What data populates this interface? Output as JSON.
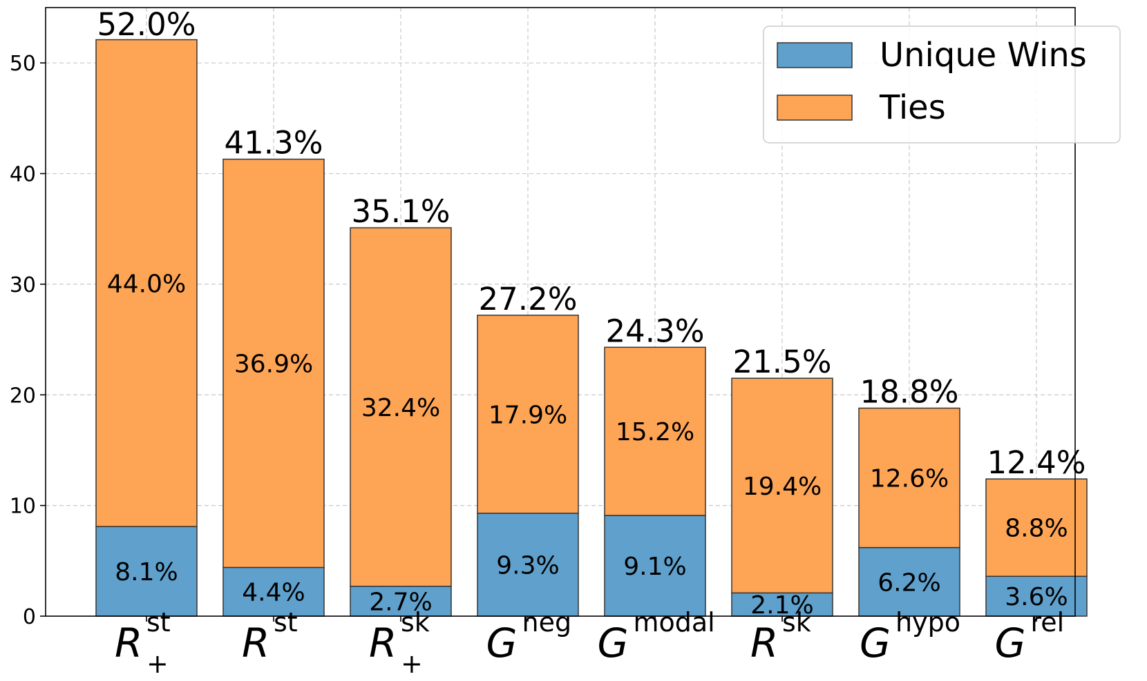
{
  "chart_data": {
    "type": "bar",
    "stacked": true,
    "categories": [
      {
        "base": "R",
        "sup": "st",
        "sub": "+"
      },
      {
        "base": "R",
        "sup": "st",
        "sub": ""
      },
      {
        "base": "R",
        "sup": "sk",
        "sub": "+"
      },
      {
        "base": "G",
        "sup": "neg",
        "sub": ""
      },
      {
        "base": "G",
        "sup": "modal",
        "sub": ""
      },
      {
        "base": "R",
        "sup": "sk",
        "sub": ""
      },
      {
        "base": "G",
        "sup": "hypo",
        "sub": ""
      },
      {
        "base": "G",
        "sup": "rel",
        "sub": ""
      }
    ],
    "series": [
      {
        "name": "Unique Wins",
        "color": "#5fa0cc",
        "values": [
          8.1,
          4.4,
          2.7,
          9.3,
          9.1,
          2.1,
          6.2,
          3.6
        ],
        "labels": [
          "8.1%",
          "4.4%",
          "2.7%",
          "9.3%",
          "9.1%",
          "2.1%",
          "6.2%",
          "3.6%"
        ]
      },
      {
        "name": "Ties",
        "color": "#fea455",
        "values": [
          44.0,
          36.9,
          32.4,
          17.9,
          15.2,
          19.4,
          12.6,
          8.8
        ],
        "labels": [
          "44.0%",
          "36.9%",
          "32.4%",
          "17.9%",
          "15.2%",
          "19.4%",
          "12.6%",
          "8.8%"
        ]
      }
    ],
    "totals": [
      52.0,
      41.3,
      35.1,
      27.2,
      24.3,
      21.5,
      18.8,
      12.4
    ],
    "total_labels": [
      "52.0%",
      "41.3%",
      "35.1%",
      "27.2%",
      "24.3%",
      "21.5%",
      "18.8%",
      "12.4%"
    ],
    "title": "",
    "xlabel": "",
    "ylabel": "",
    "ylim": [
      0,
      55
    ],
    "yticks": [
      0,
      10,
      20,
      30,
      40,
      50
    ],
    "grid": true,
    "legend_position": "top-right"
  }
}
